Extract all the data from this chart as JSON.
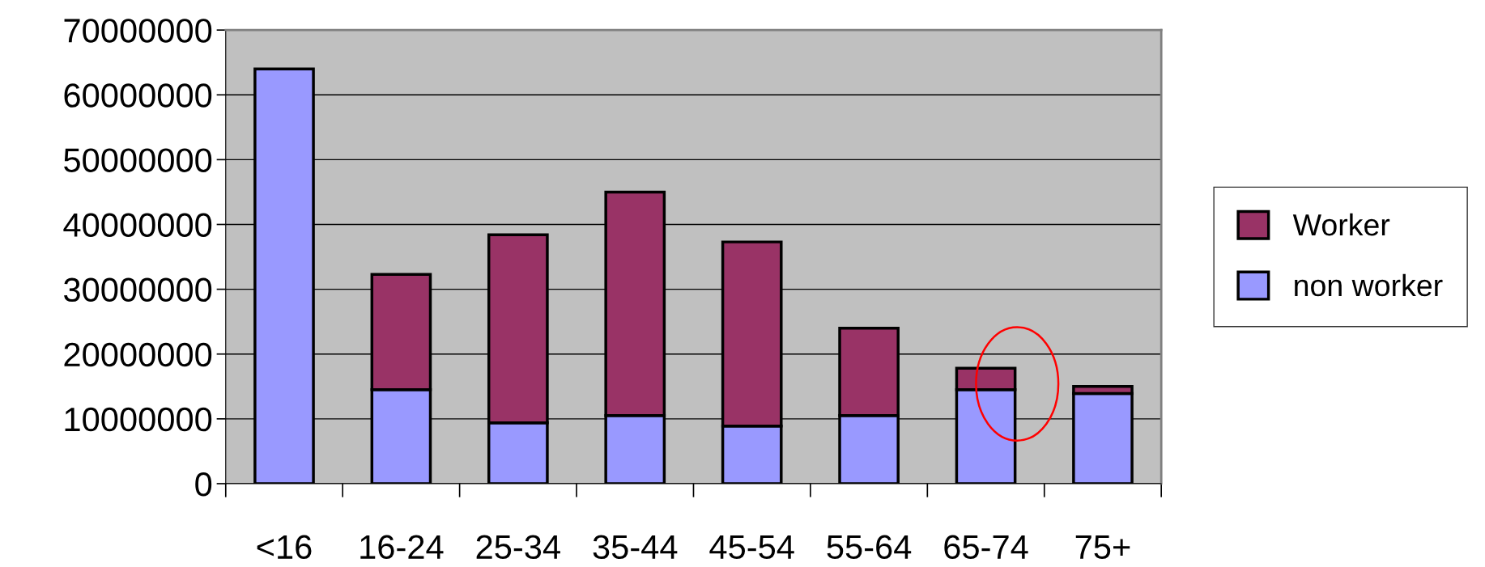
{
  "chart_data": {
    "type": "bar",
    "stacked": true,
    "categories": [
      "<16",
      "16-24",
      "25-34",
      "35-44",
      "45-54",
      "55-64",
      "65-74",
      "75+"
    ],
    "series": [
      {
        "name": "non worker",
        "color": "#9999ff",
        "values": [
          64000000,
          14500000,
          9400000,
          10500000,
          8900000,
          10500000,
          14500000,
          13900000
        ]
      },
      {
        "name": "Worker",
        "color": "#993366",
        "values": [
          null,
          17800000,
          29000000,
          34500000,
          28400000,
          13500000,
          3300000,
          1100000
        ]
      }
    ],
    "ylim": [
      0,
      70000000
    ],
    "yticks": [
      0,
      10000000,
      20000000,
      30000000,
      40000000,
      50000000,
      60000000,
      70000000
    ],
    "grid": "y",
    "legend": "right"
  }
}
